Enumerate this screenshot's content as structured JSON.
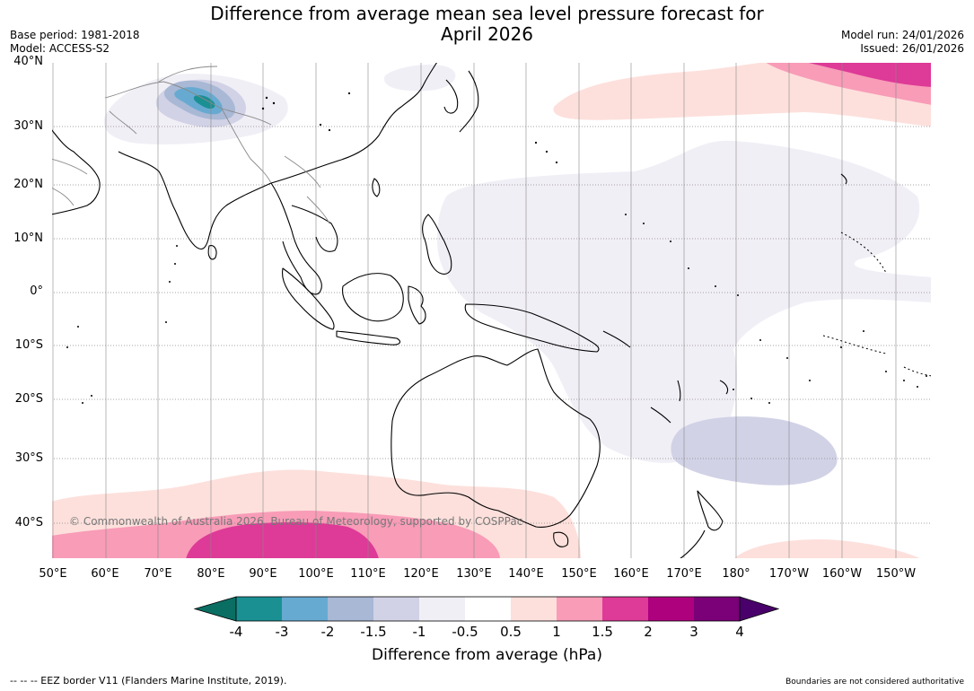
{
  "title_line1": "Difference from average mean sea level pressure forecast for",
  "title_line2": "April 2026",
  "base_period": "Base period: 1981-2018",
  "model": "Model: ACCESS-S2",
  "model_run": "Model run: 24/01/2026",
  "issued": "Issued: 26/01/2026",
  "lat_labels": [
    "40°N",
    "30°N",
    "20°N",
    "10°N",
    "0°",
    "10°S",
    "20°S",
    "30°S",
    "40°S"
  ],
  "lon_labels": [
    "50°E",
    "60°E",
    "70°E",
    "80°E",
    "90°E",
    "100°E",
    "110°E",
    "120°E",
    "130°E",
    "140°E",
    "150°E",
    "160°E",
    "170°E",
    "180°",
    "170°W",
    "160°W",
    "150°W"
  ],
  "colorbar": {
    "ticks": [
      "-4",
      "-3",
      "-2",
      "-1.5",
      "-1",
      "-0.5",
      "0.5",
      "1",
      "1.5",
      "2",
      "3",
      "4"
    ],
    "colors": [
      "#1a9093",
      "#67aad1",
      "#a8b8d5",
      "#d1d2e6",
      "#f1eff6",
      "#ffffff",
      "#fde0dc",
      "#f89cb8",
      "#de3a97",
      "#ae017e",
      "#7a0177"
    ],
    "low_color": "#0a6e63",
    "high_color": "#49006a",
    "title": "Difference from average (hPa)"
  },
  "copyright": "© Commonwealth of Australia 2026, Bureau of Meteorology, supported by COSPPac",
  "footer_left": "--  --  -- EEZ border V11 (Flanders Marine Institute, 2019).",
  "footer_right": "Boundaries are not considered authoritative",
  "colors": {
    "grid": "#888888",
    "coast": "#000000"
  }
}
